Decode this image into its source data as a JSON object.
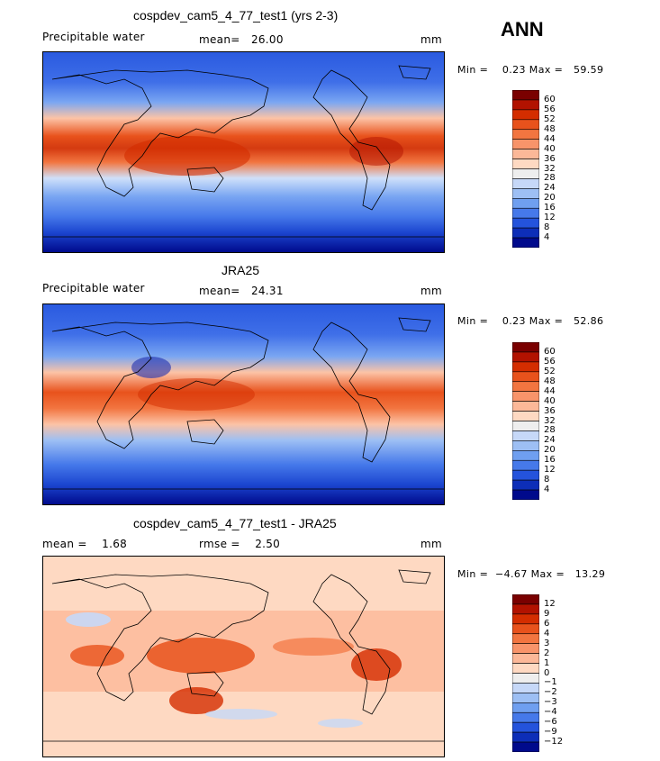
{
  "season": "ANN",
  "panels": [
    {
      "title": "cospdev_cam5_4_77_test1 (yrs 2-3)",
      "left_label": "Precipitable water",
      "center_label": "mean=",
      "center_value": "26.00",
      "units": "mm",
      "minmax": "Min =    0.23 Max =   59.59",
      "kind": "abs"
    },
    {
      "title": "JRA25",
      "left_label": "Precipitable water",
      "center_label": "mean=",
      "center_value": "24.31",
      "units": "mm",
      "minmax": "Min =    0.23 Max =   52.86",
      "kind": "abs"
    },
    {
      "title": "cospdev_cam5_4_77_test1 - JRA25",
      "left_label": "mean =",
      "left_value": "1.68",
      "center_label": "rmse =",
      "center_value": "2.50",
      "units": "mm",
      "minmax": "Min =  −4.67 Max =   13.29",
      "kind": "diff"
    }
  ],
  "colorbars": {
    "abs": {
      "levels": [
        "60",
        "56",
        "52",
        "48",
        "44",
        "40",
        "36",
        "32",
        "28",
        "24",
        "20",
        "16",
        "12",
        "8",
        "4"
      ],
      "colors": [
        "#7a0000",
        "#b21200",
        "#d42d00",
        "#e8521c",
        "#f27540",
        "#f8946a",
        "#fcb898",
        "#fed9c2",
        "#eeeeee",
        "#c6d8f8",
        "#9dbff4",
        "#6f9ff0",
        "#4679ea",
        "#2453dc",
        "#0d2eb8",
        "#000a8c"
      ]
    },
    "diff": {
      "levels": [
        "12",
        "9",
        "6",
        "4",
        "3",
        "2",
        "1",
        "0",
        "−1",
        "−2",
        "−3",
        "−4",
        "−6",
        "−9",
        "−12"
      ],
      "colors": [
        "#7a0000",
        "#b21200",
        "#d42d00",
        "#e8521c",
        "#f27540",
        "#f8946a",
        "#fcb898",
        "#fed9c2",
        "#eeeeee",
        "#c6d8f8",
        "#9dbff4",
        "#6f9ff0",
        "#4679ea",
        "#2453dc",
        "#0d2eb8",
        "#000a8c"
      ]
    }
  }
}
